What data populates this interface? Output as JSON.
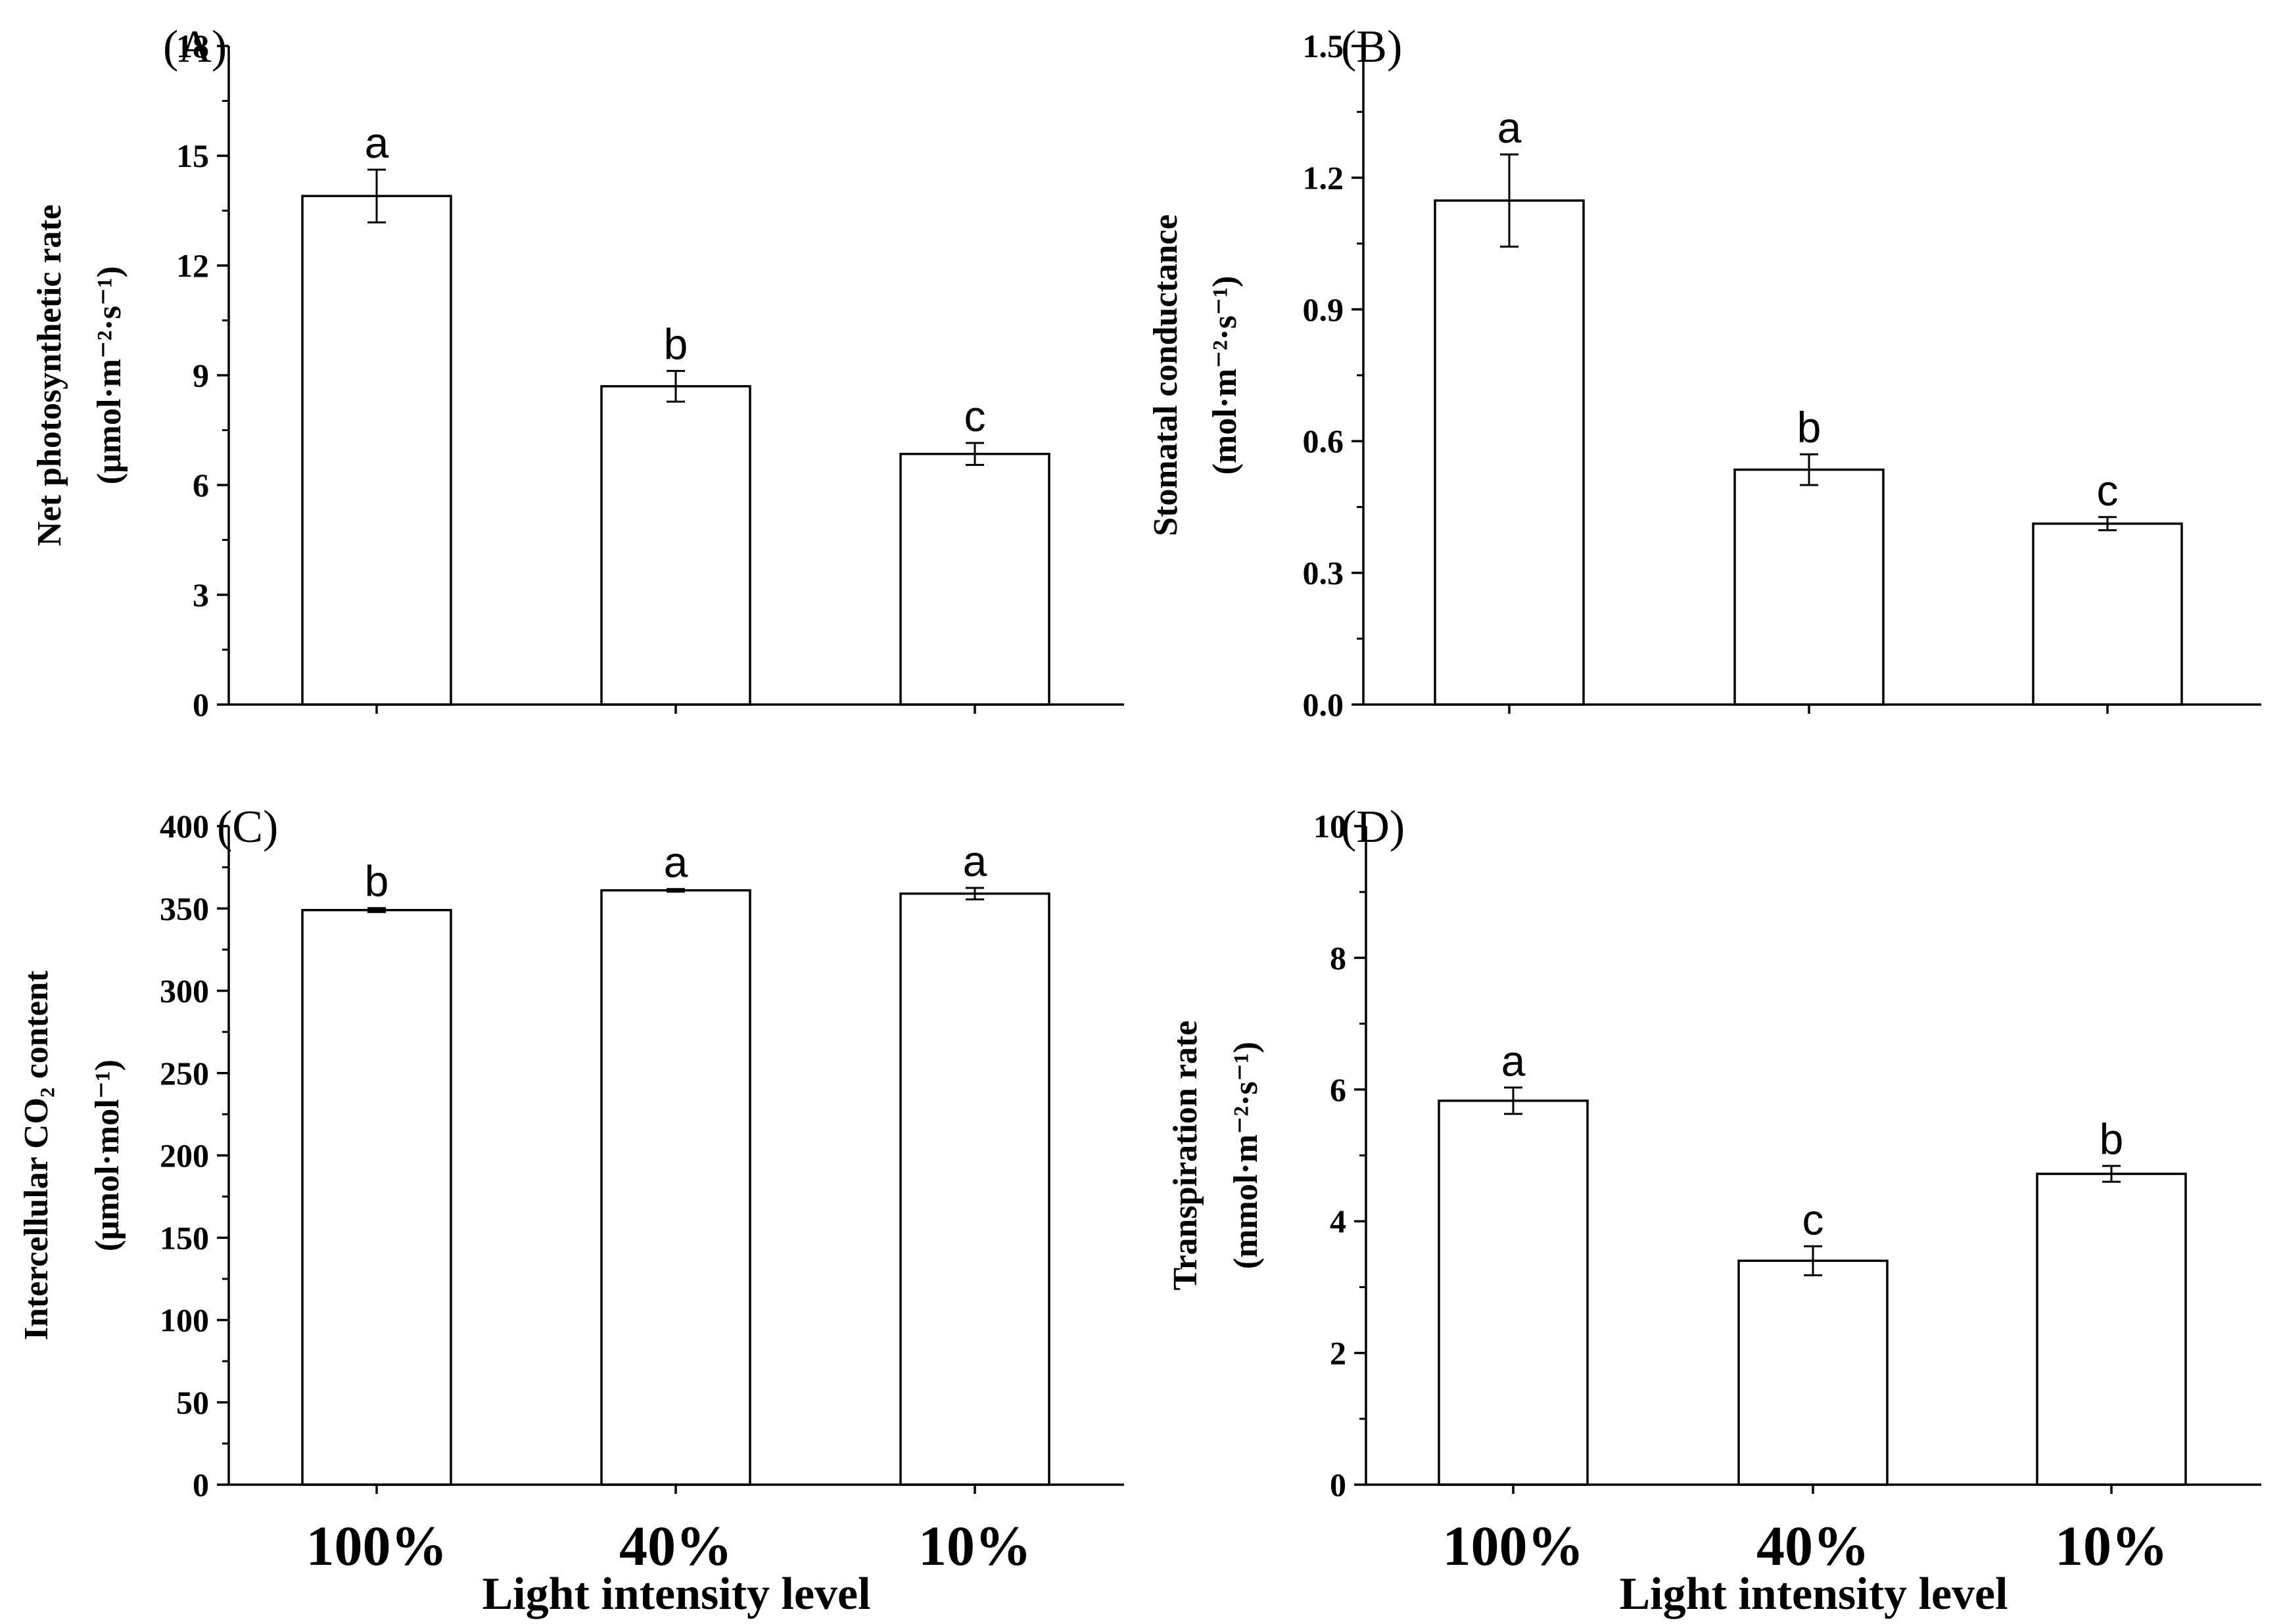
{
  "chart_data": [
    {
      "type": "bar",
      "panel_label": "(A)",
      "categories": [
        "100%",
        "40%",
        "10%"
      ],
      "values": [
        13.9,
        8.7,
        6.85
      ],
      "errors": [
        0.72,
        0.42,
        0.3
      ],
      "significance": [
        "a",
        "b",
        "c"
      ],
      "ylabel_line1": "Net photosynthetic rate",
      "ylabel_line2": "(μmol·m⁻²·s⁻¹)",
      "ylim": [
        0,
        18
      ],
      "yticks": [
        0,
        3,
        6,
        9,
        12,
        15,
        18
      ],
      "ytick_labels": [
        "0",
        "3",
        "6",
        "9",
        "12",
        "15",
        "18"
      ],
      "xlabel": ""
    },
    {
      "type": "bar",
      "panel_label": "(B)",
      "categories": [
        "100%",
        "40%",
        "10%"
      ],
      "values": [
        1.148,
        0.535,
        0.412
      ],
      "errors": [
        0.105,
        0.035,
        0.015
      ],
      "significance": [
        "a",
        "b",
        "c"
      ],
      "ylabel_line1": "Stomatal conductance",
      "ylabel_line2": "(mol·m⁻²·s⁻¹)",
      "ylim": [
        0,
        1.5
      ],
      "yticks": [
        0,
        0.3,
        0.6,
        0.9,
        1.2,
        1.5
      ],
      "ytick_labels": [
        "0.0",
        "0.3",
        "0.6",
        "0.9",
        "1.2",
        "1.5"
      ],
      "xlabel": ""
    },
    {
      "type": "bar",
      "panel_label": "(C)",
      "categories": [
        "100%",
        "40%",
        "10%"
      ],
      "values": [
        349,
        361,
        359
      ],
      "errors": [
        1.2,
        0.8,
        3.5
      ],
      "significance": [
        "b",
        "a",
        "a"
      ],
      "ylabel_line1": "Intercellular CO₂ content",
      "ylabel_line2": "(μmol·mol⁻¹)",
      "ylim": [
        0,
        400
      ],
      "yticks": [
        0,
        50,
        100,
        150,
        200,
        250,
        300,
        350,
        400
      ],
      "ytick_labels": [
        "0",
        "50",
        "100",
        "150",
        "200",
        "250",
        "300",
        "350",
        "400"
      ],
      "xlabel": "Light intensity level"
    },
    {
      "type": "bar",
      "panel_label": "(D)",
      "categories": [
        "100%",
        "40%",
        "10%"
      ],
      "values": [
        5.83,
        3.4,
        4.72
      ],
      "errors": [
        0.2,
        0.22,
        0.12
      ],
      "significance": [
        "a",
        "c",
        "b"
      ],
      "ylabel_line1": "Transpiration rate",
      "ylabel_line2": "(mmol·m⁻²·s⁻¹)",
      "ylim": [
        0,
        10
      ],
      "yticks": [
        0,
        2,
        4,
        6,
        8,
        10
      ],
      "ytick_labels": [
        "0",
        "2",
        "4",
        "6",
        "8",
        "10"
      ],
      "xlabel": "Light intensity level"
    }
  ]
}
